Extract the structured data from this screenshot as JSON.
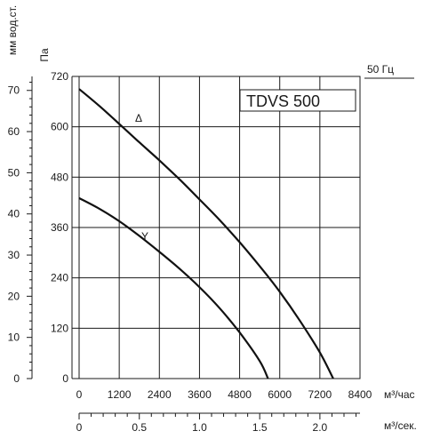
{
  "chart_data": {
    "type": "line",
    "title": "TDVS 500",
    "frequency_label": "50 Гц",
    "x_axis": {
      "label": "м³/час",
      "range": [
        0,
        8400
      ],
      "ticks": [
        0,
        1200,
        2400,
        3600,
        4800,
        6000,
        7200,
        8400
      ],
      "tick_labels": [
        "0",
        "1200",
        "2400",
        "3600",
        "4800",
        "6000",
        "7200",
        "8400"
      ]
    },
    "x2_axis": {
      "label": "м³/сек.",
      "range": [
        0,
        2.333
      ],
      "ticks": [
        0,
        0.5,
        1.0,
        1.5,
        2.0
      ],
      "tick_labels": [
        "0",
        "0.5",
        "1.0",
        "1.5",
        "2.0"
      ]
    },
    "y_axis": {
      "label": "Па",
      "range": [
        0,
        720
      ],
      "ticks": [
        0,
        120,
        240,
        360,
        480,
        600,
        720
      ],
      "tick_labels": [
        "0",
        "120",
        "240",
        "360",
        "480",
        "600",
        "720"
      ]
    },
    "y2_axis": {
      "label": "мм вод.ст.",
      "range": [
        0,
        73.4
      ],
      "ticks": [
        0,
        10,
        20,
        30,
        40,
        50,
        60,
        70
      ],
      "tick_labels": [
        "0",
        "10",
        "20",
        "30",
        "40",
        "50",
        "60",
        "70"
      ]
    },
    "grid": true,
    "series": [
      {
        "name": "Δ",
        "x": [
          0,
          600,
          1200,
          1800,
          2400,
          3000,
          3600,
          4200,
          4800,
          5400,
          6000,
          6600,
          7200,
          7600
        ],
        "y": [
          690,
          650,
          607,
          563,
          520,
          475,
          427,
          378,
          325,
          268,
          207,
          138,
          62,
          0
        ]
      },
      {
        "name": "Y",
        "x": [
          0,
          600,
          1200,
          1800,
          2400,
          3000,
          3600,
          4200,
          4800,
          5400,
          5650
        ],
        "y": [
          430,
          405,
          375,
          340,
          302,
          262,
          218,
          168,
          110,
          42,
          0
        ]
      }
    ]
  }
}
